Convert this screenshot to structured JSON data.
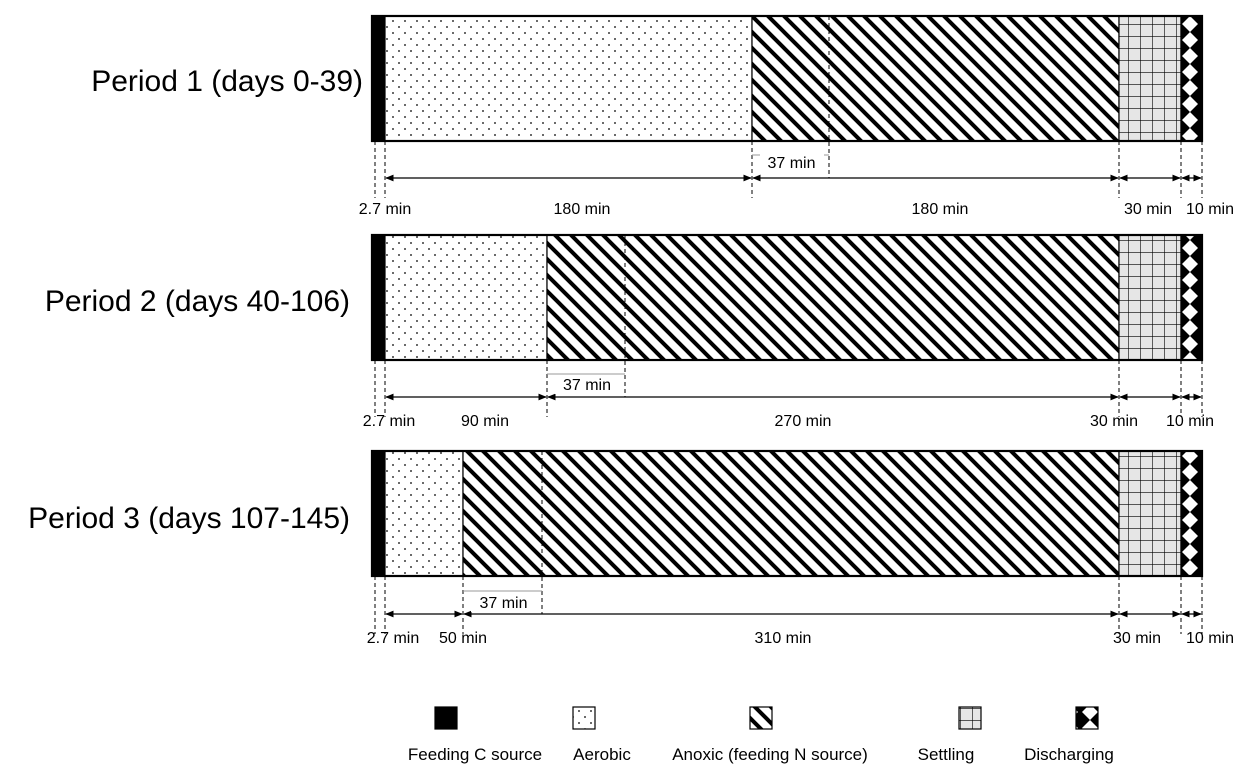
{
  "periods": [
    {
      "title": "Period 1 (days 0-39)",
      "phases": [
        {
          "phase": "feeding",
          "label": "2.7 min"
        },
        {
          "phase": "aerobic",
          "label": "180 min"
        },
        {
          "phase": "anoxic",
          "label": "180 min"
        },
        {
          "phase": "settling",
          "label": "30 min"
        },
        {
          "phase": "discharging",
          "label": "10 min"
        }
      ],
      "note": "37 min"
    },
    {
      "title": "Period 2 (days 40-106)",
      "phases": [
        {
          "phase": "feeding",
          "label": "2.7 min"
        },
        {
          "phase": "aerobic",
          "label": "90  min"
        },
        {
          "phase": "anoxic",
          "label": "270 min"
        },
        {
          "phase": "settling",
          "label": "30 min"
        },
        {
          "phase": "discharging",
          "label": "10 min"
        }
      ],
      "note": "37 min"
    },
    {
      "title": "Period 3 (days 107-145)",
      "phases": [
        {
          "phase": "feeding",
          "label": "2.7 min"
        },
        {
          "phase": "aerobic",
          "label": "50 min"
        },
        {
          "phase": "anoxic",
          "label": "310 min"
        },
        {
          "phase": "settling",
          "label": "30 min"
        },
        {
          "phase": "discharging",
          "label": "10 min"
        }
      ],
      "note": "37 min"
    }
  ],
  "legend": [
    {
      "phase": "feeding",
      "label": "Feeding C source"
    },
    {
      "phase": "aerobic",
      "label": "Aerobic"
    },
    {
      "phase": "anoxic",
      "label": "Anoxic (feeding N source)"
    },
    {
      "phase": "settling",
      "label": "Settling"
    },
    {
      "phase": "discharging",
      "label": "Discharging"
    }
  ]
}
